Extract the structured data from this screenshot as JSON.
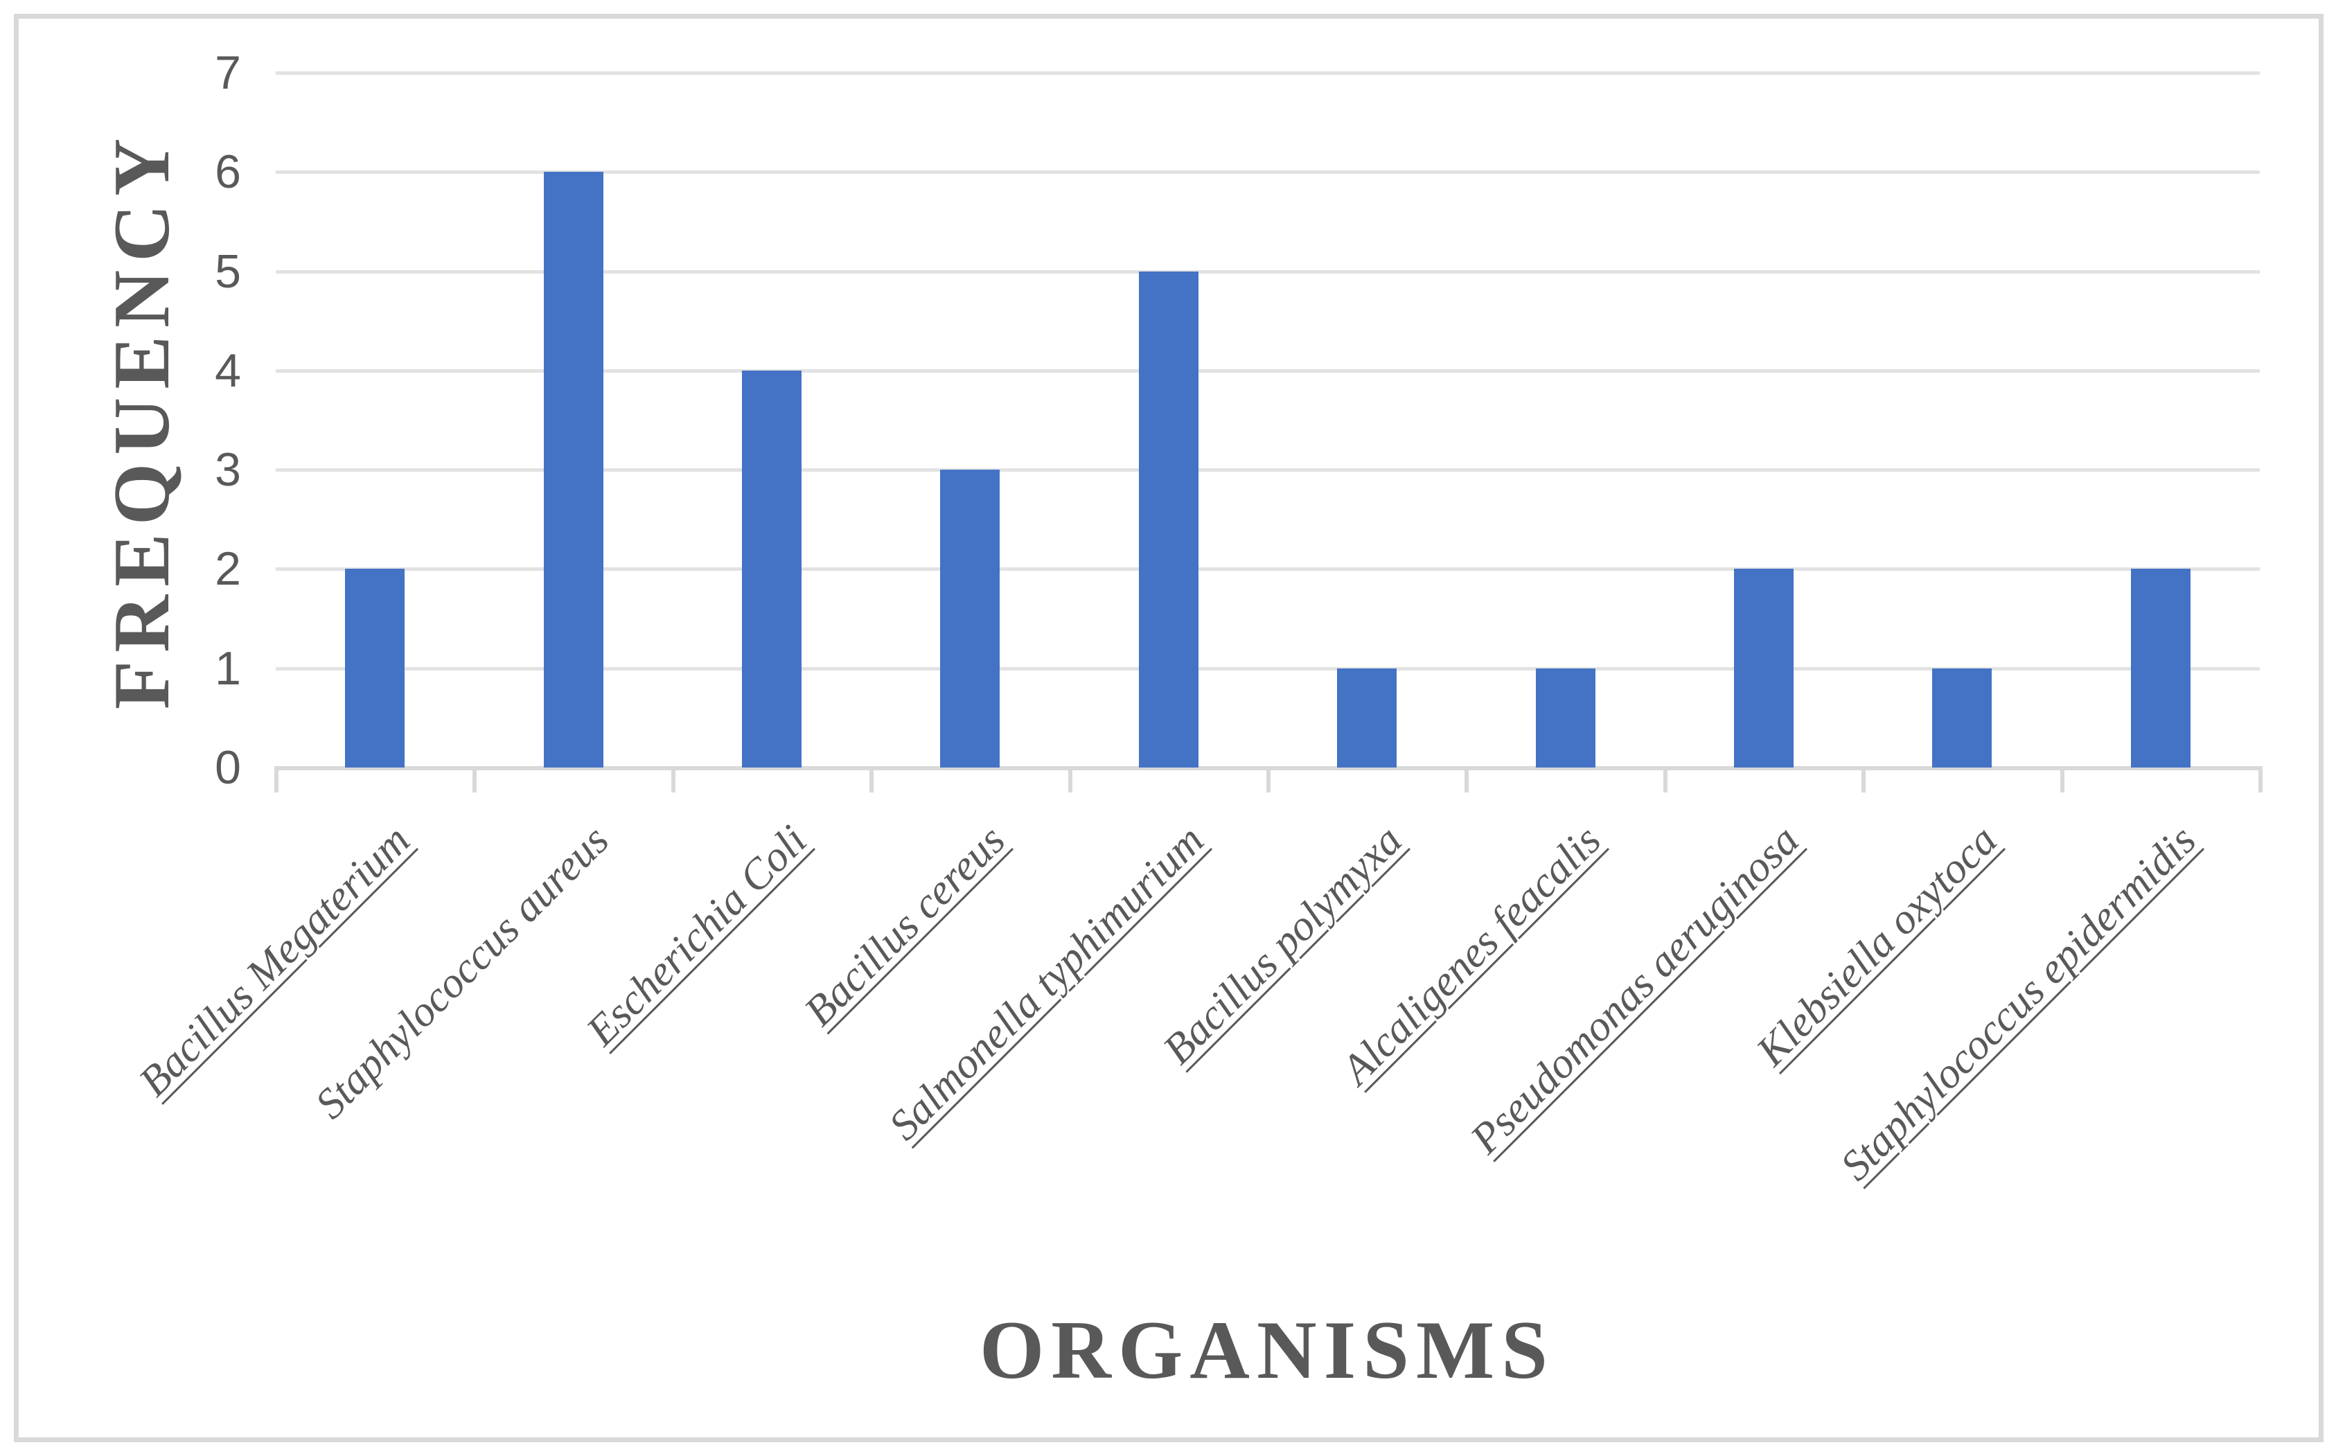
{
  "chart_data": {
    "type": "bar",
    "title": "",
    "xlabel": "ORGANISMS",
    "ylabel": "FREQUENCY",
    "categories": [
      "Bacillus Megaterium",
      "Staphylococcus aureus",
      "Escherichia Coli",
      "Bacillus cereus",
      "Salmonella typhimurium",
      "Bacillus polymyxa",
      "Alcaligenes feacalis",
      "Pseudomonas aeruginosa",
      "Klebsiella oxytoca",
      "Staphylococcus epidermidis"
    ],
    "values": [
      2,
      6,
      4,
      3,
      5,
      1,
      1,
      2,
      1,
      2
    ],
    "category_label_underlined": [
      true,
      false,
      true,
      true,
      true,
      true,
      true,
      true,
      true,
      true
    ],
    "category_label_style": "italic, rotated 45 degrees",
    "yticks": [
      0,
      1,
      2,
      3,
      4,
      5,
      6,
      7
    ],
    "ylim": [
      0,
      7
    ],
    "grid": "horizontal",
    "legend": "none",
    "colors": {
      "bar": "#4472c4",
      "text": "#595959",
      "gridline": "#e2e2e2",
      "axis_line": "#d9d9d9",
      "frame_border": "#d9d9d9",
      "background": "#ffffff"
    }
  }
}
